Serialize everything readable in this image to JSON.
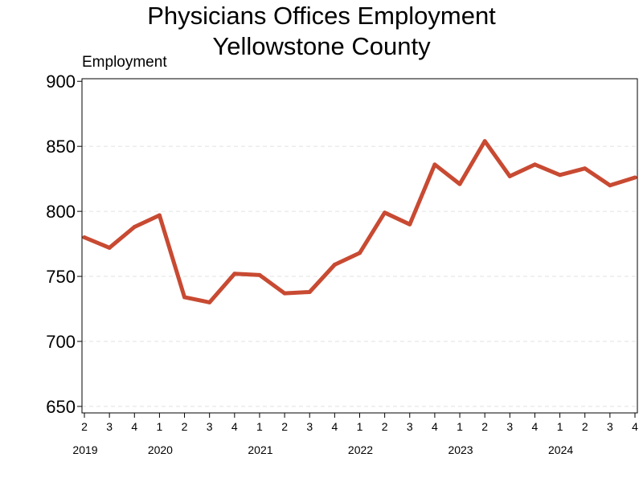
{
  "chart_data": {
    "type": "line",
    "title": "Physicians Offices Employment",
    "subtitle": "Yellowstone County",
    "ylabel": "Employment",
    "xlabel": "",
    "ylim": [
      645,
      902
    ],
    "yticks": [
      650,
      700,
      750,
      800,
      850,
      900
    ],
    "grid": true,
    "line_color": "#c84a32",
    "quarters": [
      "2",
      "3",
      "4",
      "1",
      "2",
      "3",
      "4",
      "1",
      "2",
      "3",
      "4",
      "1",
      "2",
      "3",
      "4",
      "1",
      "2",
      "3",
      "4",
      "1",
      "2",
      "3",
      "4"
    ],
    "years": [
      {
        "label": "2019",
        "index": 0
      },
      {
        "label": "2020",
        "index": 3
      },
      {
        "label": "2021",
        "index": 7
      },
      {
        "label": "2022",
        "index": 11
      },
      {
        "label": "2023",
        "index": 15
      },
      {
        "label": "2024",
        "index": 19
      }
    ],
    "series": [
      {
        "values": [
          780,
          772,
          788,
          797,
          734,
          730,
          752,
          751,
          737,
          738,
          759,
          768,
          799,
          790,
          836,
          821,
          854,
          827,
          836,
          828,
          833,
          820,
          826
        ]
      }
    ]
  }
}
